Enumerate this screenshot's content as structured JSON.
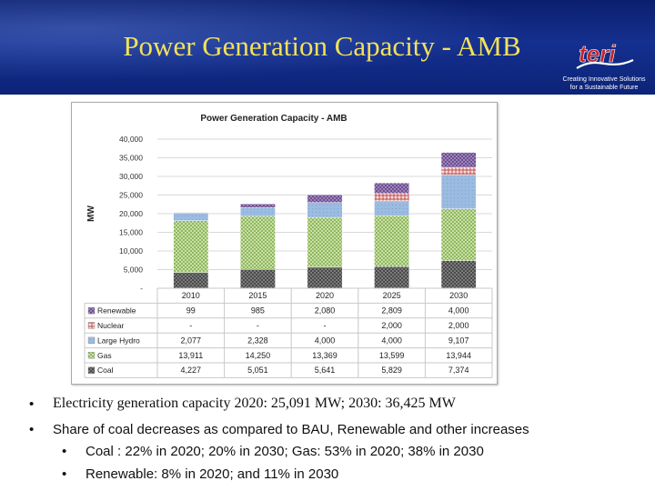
{
  "slide": {
    "title": "Power Generation Capacity - AMB",
    "logo_text": "teri",
    "tagline_line1": "Creating Innovative Solutions",
    "tagline_line2": "for a Sustainable Future"
  },
  "chart_data": {
    "type": "bar",
    "stacked": true,
    "title": "Power Generation Capacity - AMB",
    "ylabel": "MW",
    "xlabel": "",
    "ylim": [
      0,
      40000
    ],
    "yticks": [
      "40,000",
      "35,000",
      "30,000",
      "25,000",
      "20,000",
      "15,000",
      "10,000",
      "5,000",
      "-"
    ],
    "categories": [
      "2010",
      "2015",
      "2020",
      "2025",
      "2030"
    ],
    "series": [
      {
        "name": "Renewable",
        "values": [
          99,
          985,
          2080,
          2809,
          4000
        ],
        "labels": [
          "99",
          "985",
          "2,080",
          "2,809",
          "4,000"
        ],
        "color": "#7b5a9c"
      },
      {
        "name": "Nuclear",
        "values": [
          0,
          0,
          0,
          2000,
          2000
        ],
        "labels": [
          "-",
          "-",
          "-",
          "2,000",
          "2,000"
        ],
        "color": "#e8b4b4"
      },
      {
        "name": "Large Hydro",
        "values": [
          2077,
          2328,
          4000,
          4000,
          9107
        ],
        "labels": [
          "2,077",
          "2,328",
          "4,000",
          "4,000",
          "9,107"
        ],
        "color": "#95b3d7"
      },
      {
        "name": "Gas",
        "values": [
          13911,
          14250,
          13369,
          13599,
          13944
        ],
        "labels": [
          "13,911",
          "14,250",
          "13,369",
          "13,599",
          "13,944"
        ],
        "color": "#b5d38c"
      },
      {
        "name": "Coal",
        "values": [
          4227,
          5051,
          5641,
          5829,
          7374
        ],
        "labels": [
          "4,227",
          "5,051",
          "5,641",
          "5,829",
          "7,374"
        ],
        "color": "#5f5f5f"
      }
    ],
    "data_table": true
  },
  "bullets": [
    {
      "text": "Electricity generation capacity 2020:  25,091 MW; 2030: 36,425 MW",
      "level": 1
    },
    {
      "text": "Share of coal decreases as compared to BAU, Renewable and other increases",
      "level": 1
    },
    {
      "text": "Coal : 22%  in 2020;  20% in 2030; Gas: 53%  in 2020;  38% in 2030",
      "level": 2
    },
    {
      "text": "Renewable:  8% in 2020; and 11% in 2030",
      "level": 2
    }
  ]
}
